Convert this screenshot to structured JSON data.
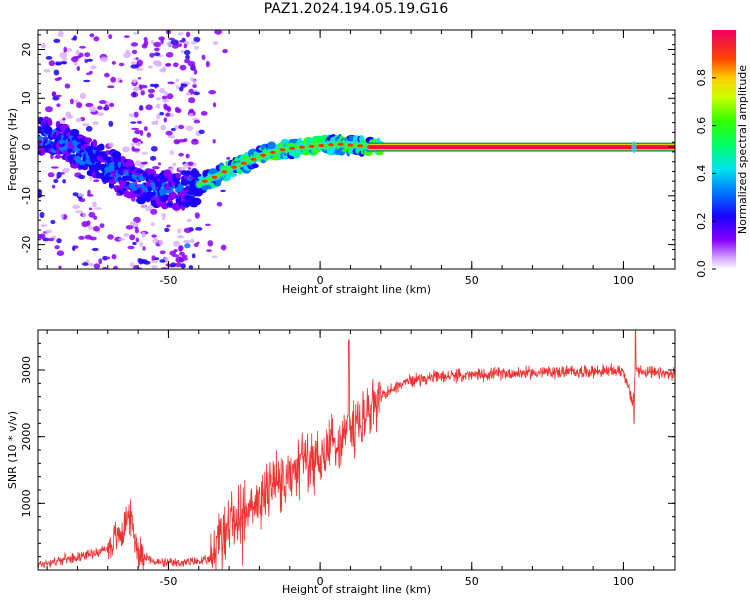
{
  "title": "PAZ1.2024.194.05.19.G16",
  "chart_data": [
    {
      "type": "heatmap",
      "title": "PAZ1.2024.194.05.19.G16",
      "xlabel": "Height of straight line (km)",
      "ylabel": "Frequency (Hz)",
      "xlim": [
        -93,
        117
      ],
      "ylim": [
        -25,
        24
      ],
      "xticks": [
        -50,
        0,
        50,
        100
      ],
      "yticks": [
        -20,
        -10,
        0,
        10,
        20
      ],
      "colorbar": {
        "label": "Normalized spectral amplitude",
        "ticks": [
          "0.0",
          "0.2",
          "0.4",
          "0.6",
          "0.8"
        ],
        "tick_values": [
          0.0,
          0.2,
          0.4,
          0.6,
          0.8
        ],
        "range": [
          0,
          1
        ]
      },
      "ridge": [
        {
          "x": -92,
          "y": 2.5
        },
        {
          "x": -85,
          "y": 1.0
        },
        {
          "x": -78,
          "y": -1.5
        },
        {
          "x": -72,
          "y": -3.0
        },
        {
          "x": -66,
          "y": -5.5
        },
        {
          "x": -60,
          "y": -7.5
        },
        {
          "x": -54,
          "y": -8.5
        },
        {
          "x": -48,
          "y": -9.0
        },
        {
          "x": -42,
          "y": -8.5
        },
        {
          "x": -38,
          "y": -7.0
        },
        {
          "x": -34,
          "y": -6.0
        },
        {
          "x": -30,
          "y": -4.5
        },
        {
          "x": -24,
          "y": -3.0
        },
        {
          "x": -18,
          "y": -1.5
        },
        {
          "x": -12,
          "y": -0.5
        },
        {
          "x": -6,
          "y": 0.0
        },
        {
          "x": 0,
          "y": 0.3
        },
        {
          "x": 6,
          "y": 0.6
        },
        {
          "x": 12,
          "y": 0.3
        },
        {
          "x": 18,
          "y": 0.0
        },
        {
          "x": 30,
          "y": 0.0
        },
        {
          "x": 60,
          "y": 0.0
        },
        {
          "x": 90,
          "y": 0.0
        },
        {
          "x": 117,
          "y": 0.0
        }
      ]
    },
    {
      "type": "line",
      "xlabel": "Height of straight line (km)",
      "ylabel": "SNR (10 * v/v)",
      "xlim": [
        -93,
        117
      ],
      "ylim": [
        0,
        3600
      ],
      "xticks": [
        -50,
        0,
        50,
        100
      ],
      "yticks": [
        1000,
        2000,
        3000
      ],
      "color": "#ee3333",
      "series": [
        {
          "x": [
            -93,
            -85,
            -75,
            -70,
            -65,
            -63,
            -60,
            -55,
            -50,
            -45,
            -40,
            -36,
            -34,
            -30,
            -25,
            -20,
            -15,
            -10,
            -5,
            0,
            5,
            10,
            15,
            20,
            25,
            30,
            40,
            50,
            60,
            70,
            80,
            90,
            100,
            103,
            104,
            110,
            117
          ],
          "y": [
            80,
            150,
            250,
            320,
            600,
            850,
            300,
            120,
            100,
            110,
            130,
            150,
            450,
            700,
            900,
            1100,
            1300,
            1450,
            1650,
            1750,
            1900,
            2100,
            2300,
            2600,
            2750,
            2850,
            2900,
            2920,
            2950,
            2960,
            2970,
            2980,
            2990,
            2500,
            3000,
            2950,
            2930
          ]
        }
      ]
    }
  ]
}
